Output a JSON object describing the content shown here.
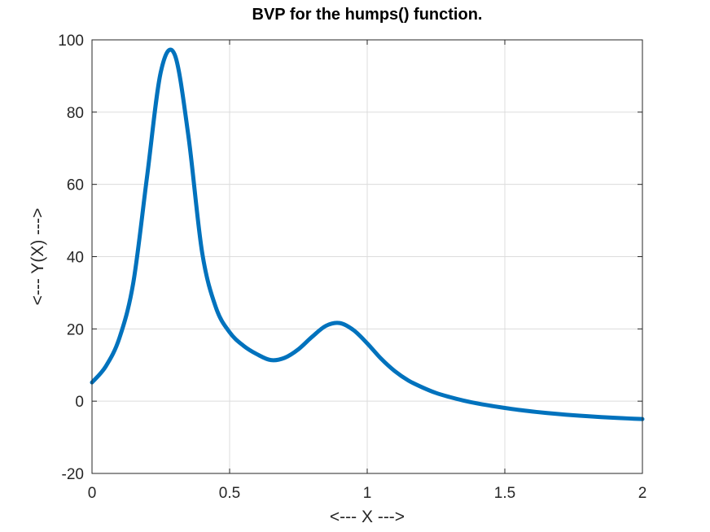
{
  "chart_data": {
    "type": "line",
    "title": "BVP for the humps() function.",
    "xlabel": "<--- X --->",
    "ylabel": "<--- Y(X) --->",
    "xlim": [
      0,
      2
    ],
    "ylim": [
      -20,
      100
    ],
    "xticks": [
      0,
      0.5,
      1,
      1.5,
      2
    ],
    "xtick_labels": [
      "0",
      "0.5",
      "1",
      "1.5",
      "2"
    ],
    "yticks": [
      -20,
      0,
      20,
      40,
      60,
      80,
      100
    ],
    "ytick_labels": [
      "-20",
      "0",
      "20",
      "40",
      "60",
      "80",
      "100"
    ],
    "grid": true,
    "legend": "none",
    "series": [
      {
        "color": "#0072bd",
        "x": [
          0,
          0.05,
          0.1,
          0.15,
          0.2,
          0.25,
          0.3,
          0.35,
          0.4,
          0.45,
          0.5,
          0.55,
          0.6,
          0.65,
          0.7,
          0.75,
          0.8,
          0.85,
          0.9,
          0.95,
          1.0,
          1.05,
          1.1,
          1.15,
          1.2,
          1.25,
          1.3,
          1.35,
          1.4,
          1.45,
          1.5,
          1.55,
          1.6,
          1.65,
          1.7,
          1.75,
          1.8,
          1.85,
          1.9,
          1.95,
          2.0
        ],
        "y": [
          5.18,
          9.63,
          17.57,
          32.77,
          62.13,
          91.12,
          96.0,
          73.55,
          41.24,
          25.96,
          19.08,
          15.37,
          12.97,
          11.37,
          12.0,
          14.36,
          17.84,
          20.85,
          21.62,
          19.67,
          16.0,
          11.79,
          8.32,
          5.7,
          3.83,
          2.27,
          1.13,
          0.17,
          -0.63,
          -1.28,
          -1.88,
          -2.41,
          -2.86,
          -3.26,
          -3.6,
          -3.9,
          -4.16,
          -4.4,
          -4.6,
          -4.79,
          -4.95
        ]
      }
    ]
  }
}
